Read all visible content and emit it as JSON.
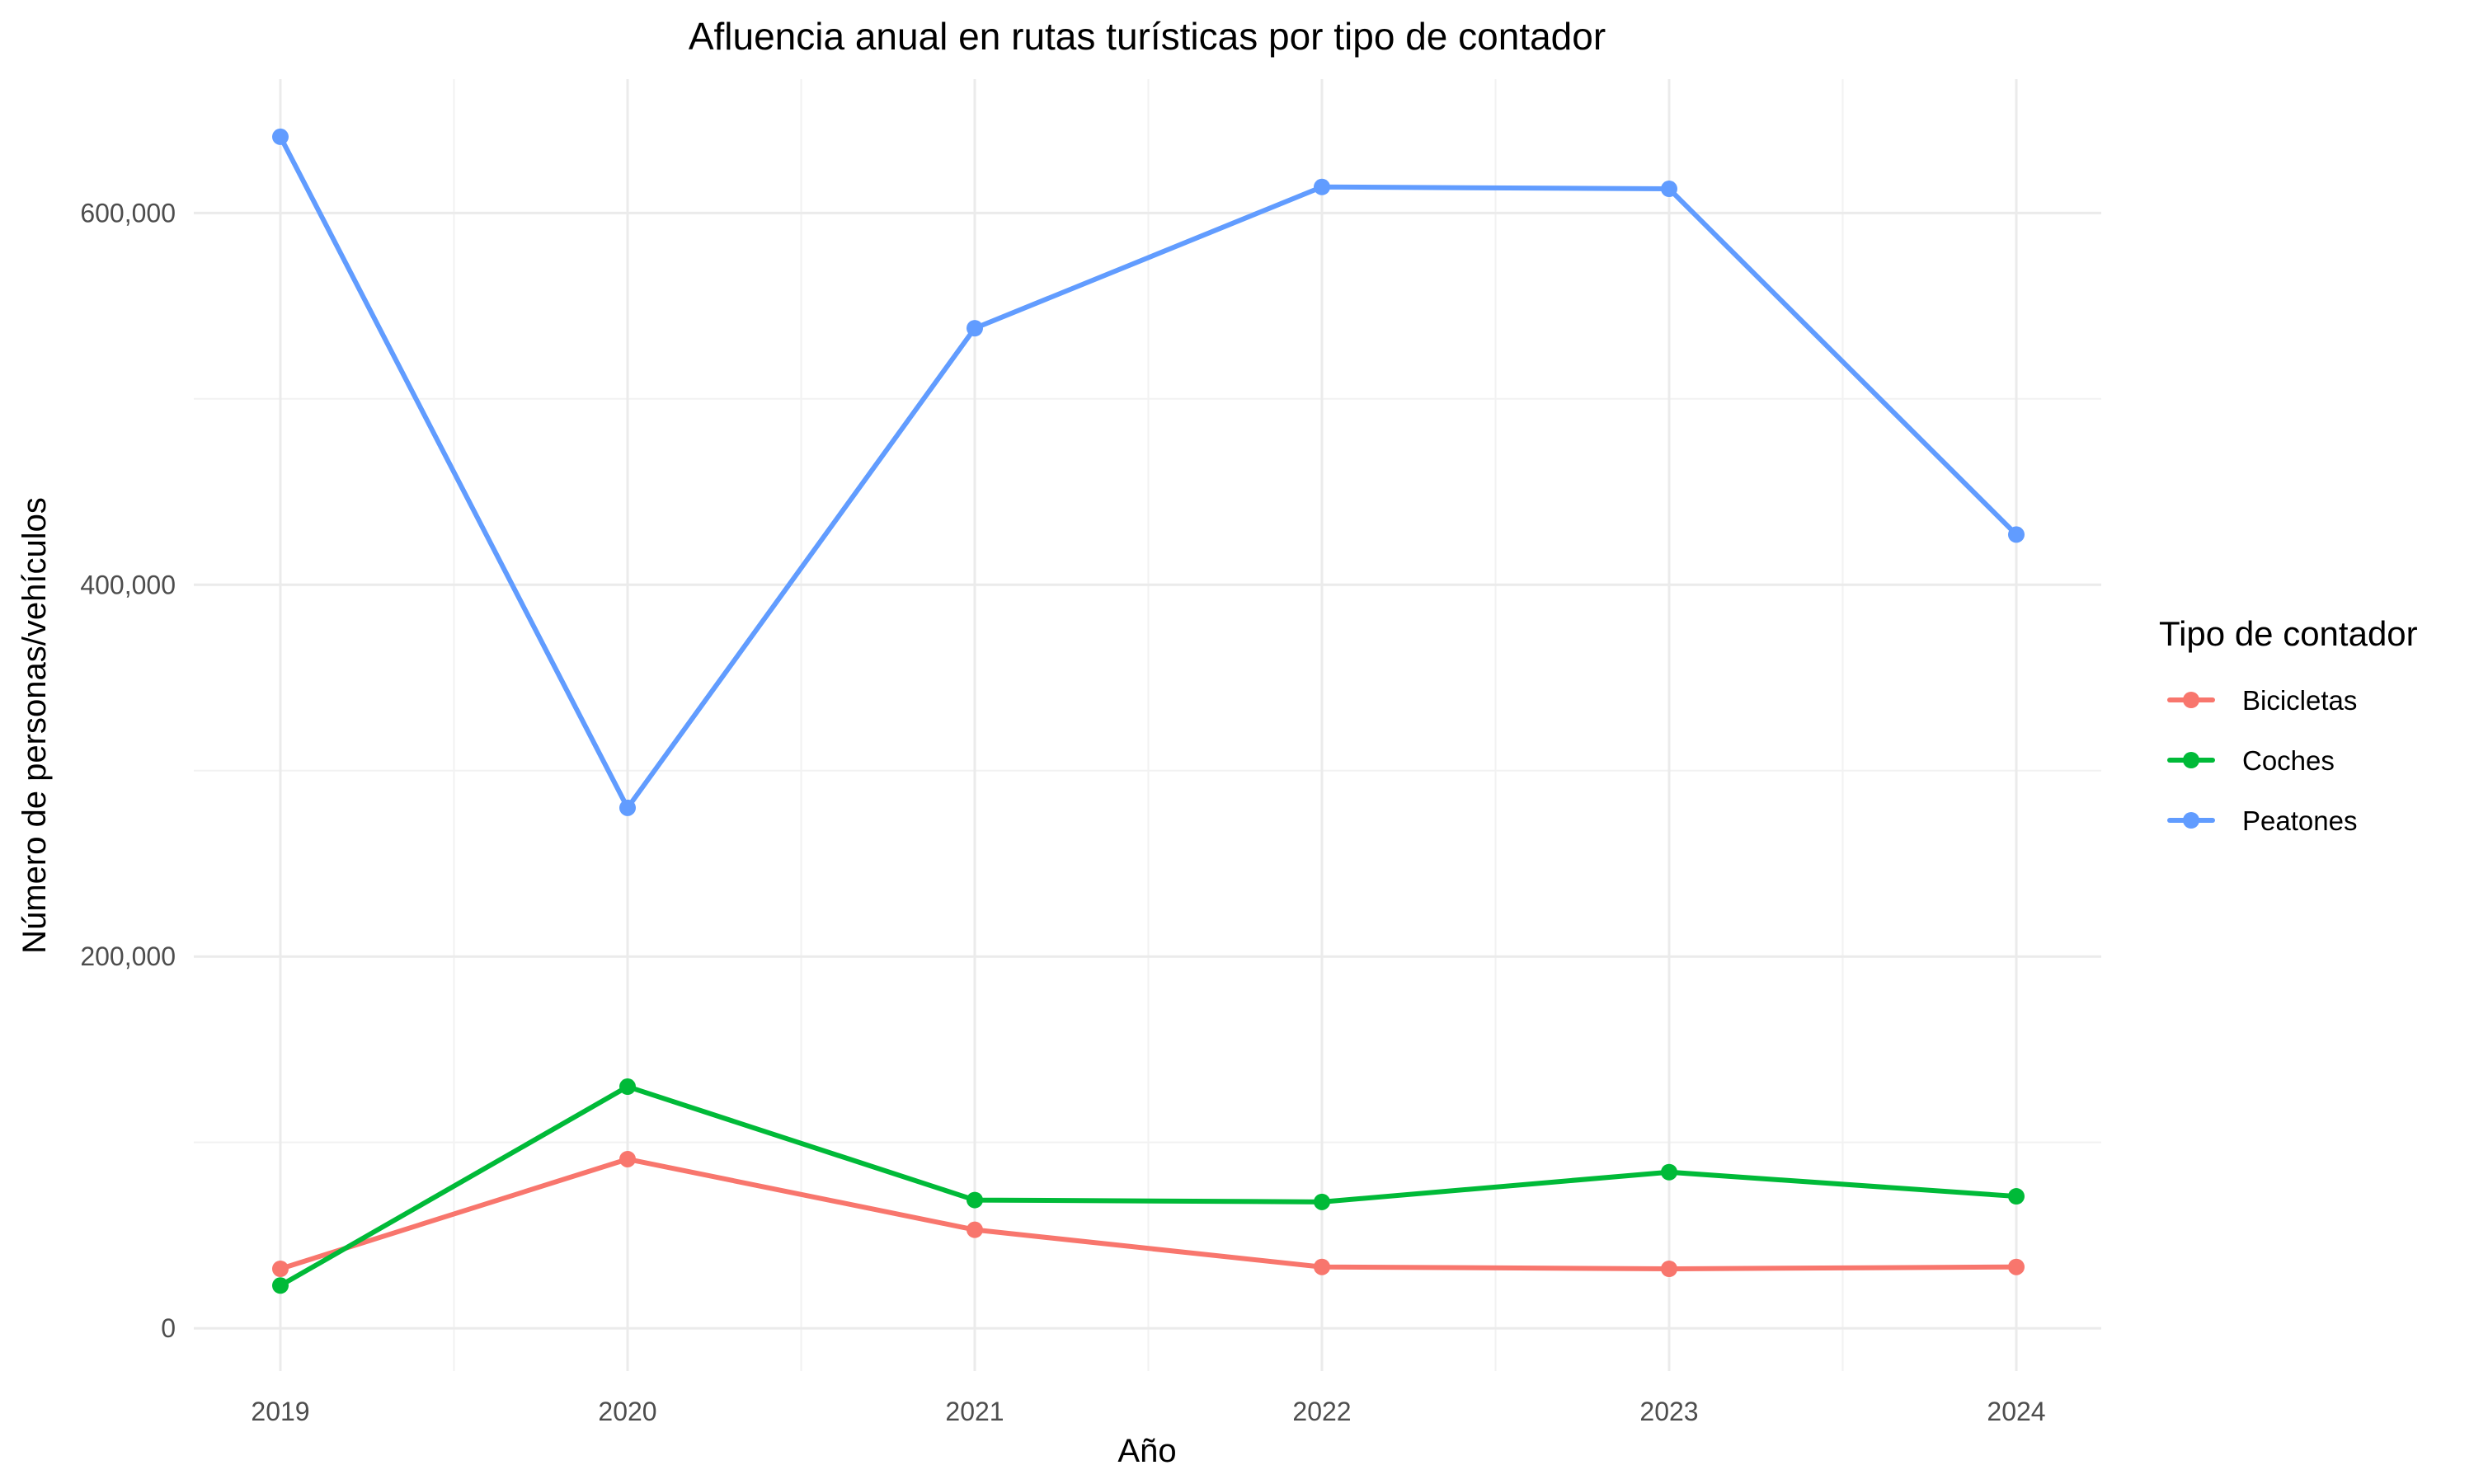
{
  "chart_data": {
    "type": "line",
    "title": "Afluencia anual en rutas turísticas por tipo de contador",
    "xlabel": "Año",
    "ylabel": "Número de personas/vehículos",
    "categories": [
      "2019",
      "2020",
      "2021",
      "2022",
      "2023",
      "2024"
    ],
    "x_tick_labels": [
      "2019",
      "2020",
      "2021",
      "2022",
      "2023",
      "2024"
    ],
    "y_ticks": [
      0,
      200000,
      400000,
      600000
    ],
    "y_tick_labels": [
      "0",
      "200,000",
      "400,000",
      "600,000"
    ],
    "ylim": [
      -23000,
      672000
    ],
    "grid": true,
    "legend": {
      "title": "Tipo de contador",
      "position": "right"
    },
    "series": [
      {
        "name": "Bicicletas",
        "color": "#F8766D",
        "values": [
          32000,
          91000,
          53000,
          33000,
          32000,
          33000
        ]
      },
      {
        "name": "Coches",
        "color": "#00BA38",
        "values": [
          23000,
          130000,
          69000,
          68000,
          84000,
          71000
        ]
      },
      {
        "name": "Peatones",
        "color": "#619CFF",
        "values": [
          641000,
          280000,
          538000,
          614000,
          613000,
          427000
        ]
      }
    ]
  }
}
